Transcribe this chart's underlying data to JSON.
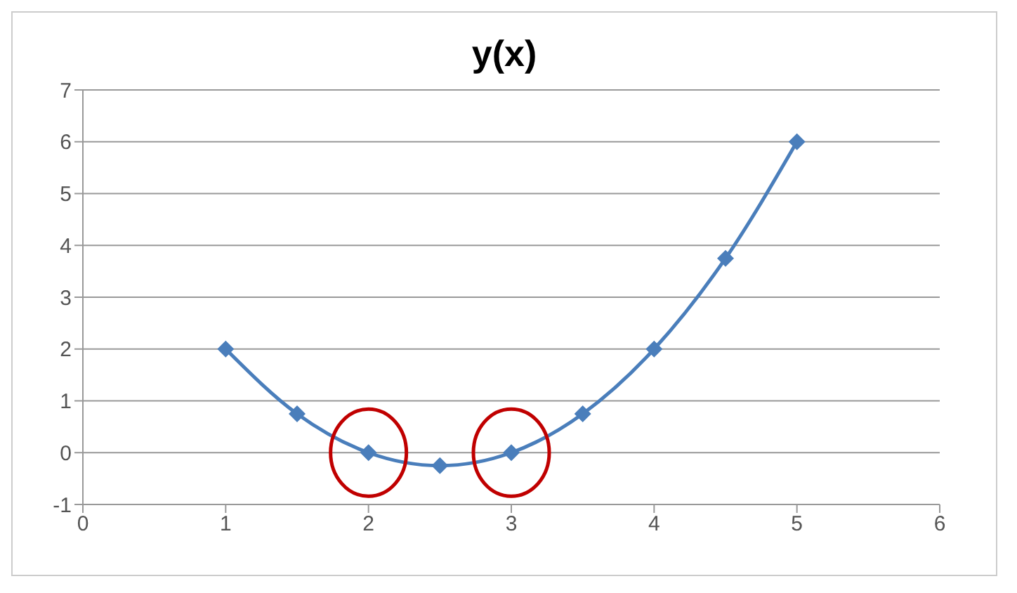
{
  "chart_data": {
    "type": "line",
    "title": "y(x)",
    "x": [
      1,
      1.5,
      2,
      2.5,
      3,
      3.5,
      4,
      4.5,
      5
    ],
    "series": [
      {
        "color": "#4a7ebb",
        "values": [
          2,
          0.75,
          0,
          -0.25,
          0,
          0.75,
          2,
          3.75,
          6
        ]
      }
    ],
    "xlim": [
      0,
      6
    ],
    "xticks": [
      0,
      1,
      2,
      3,
      4,
      5,
      6
    ],
    "ylim": [
      -1,
      7
    ],
    "yticks": [
      -1,
      0,
      1,
      2,
      3,
      4,
      5,
      6,
      7
    ],
    "grid": "y",
    "marker": "diamond",
    "line_style": "solid",
    "legend": false
  }
}
